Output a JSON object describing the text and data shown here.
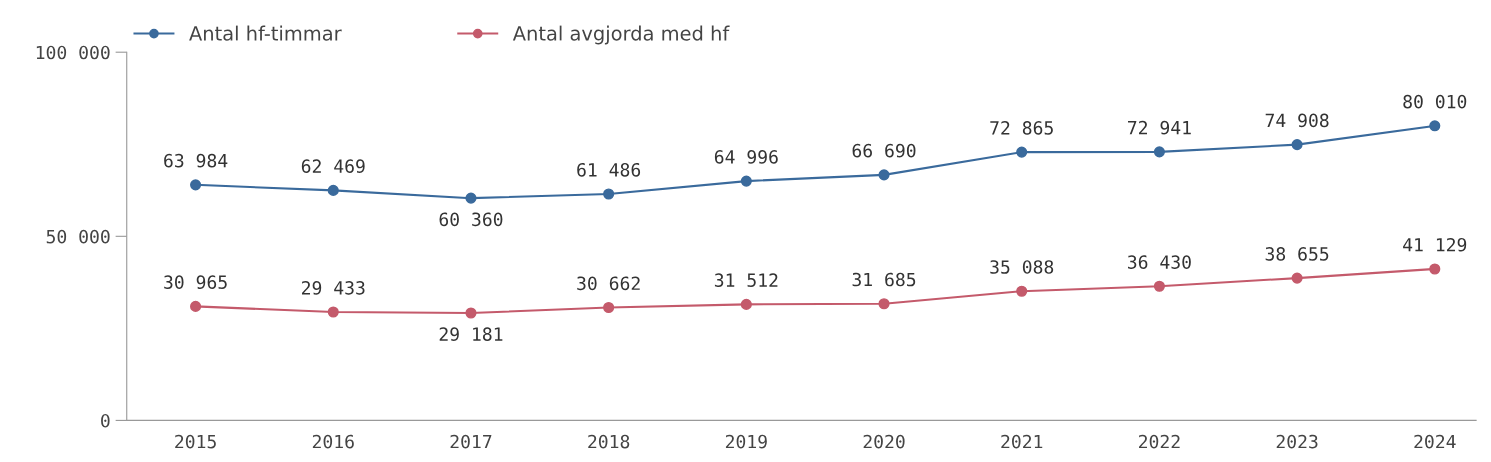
{
  "chart_data": {
    "type": "line",
    "categories": [
      "2015",
      "2016",
      "2017",
      "2018",
      "2019",
      "2020",
      "2021",
      "2022",
      "2023",
      "2024"
    ],
    "series": [
      {
        "name": "Antal hf-timmar",
        "color": "#3a6a9c",
        "values": [
          63984,
          62469,
          60360,
          61486,
          64996,
          66690,
          72865,
          72941,
          74908,
          80010
        ],
        "value_labels": [
          "63 984",
          "62 469",
          "60 360",
          "61 486",
          "64 996",
          "66 690",
          "72 865",
          "72 941",
          "74 908",
          "80 010"
        ]
      },
      {
        "name": "Antal avgjorda med hf",
        "color": "#c45a6b",
        "values": [
          30965,
          29433,
          29181,
          30662,
          31512,
          31685,
          35088,
          36430,
          38655,
          41129
        ],
        "value_labels": [
          "30 965",
          "29 433",
          "29 181",
          "30 662",
          "31 512",
          "31 685",
          "35 088",
          "36 430",
          "38 655",
          "41 129"
        ]
      }
    ],
    "ylim": [
      0,
      100000
    ],
    "yticks": [
      {
        "value": 0,
        "label": "0"
      },
      {
        "value": 50000,
        "label": "50 000"
      },
      {
        "value": 100000,
        "label": "100 000"
      }
    ],
    "grid": false,
    "legend": "top left",
    "marker": "circle",
    "line_style": "solid"
  }
}
